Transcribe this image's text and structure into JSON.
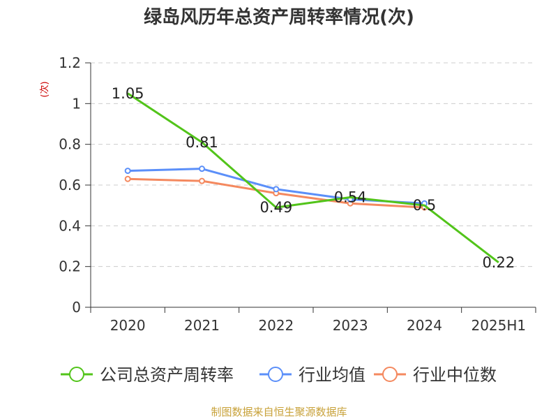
{
  "chart_data": {
    "type": "line",
    "title": "绿岛风历年总资产周转率情况(次)",
    "ylabel": "(次)",
    "xlabel": "",
    "categories": [
      "2020",
      "2021",
      "2022",
      "2023",
      "2024",
      "2025H1"
    ],
    "ylim": [
      0,
      1.2
    ],
    "yticks": [
      "0",
      "0.2",
      "0.4",
      "0.6",
      "0.8",
      "1",
      "1.2"
    ],
    "grid": true,
    "legend_position": "bottom",
    "series": [
      {
        "name": "公司总资产周转率",
        "values": [
          1.05,
          0.81,
          0.49,
          0.54,
          0.5,
          0.22
        ],
        "labels": [
          "1.05",
          "0.81",
          "0.49",
          "0.54",
          "0.5",
          "0.22"
        ],
        "color": "#52c41a"
      },
      {
        "name": "行业均值",
        "values": [
          0.67,
          0.68,
          0.58,
          0.53,
          0.51,
          null
        ],
        "color": "#5b8ff9"
      },
      {
        "name": "行业中位数",
        "values": [
          0.63,
          0.62,
          0.56,
          0.51,
          0.49,
          null
        ],
        "color": "#f4895f"
      }
    ],
    "source": "制图数据来自恒生聚源数据库"
  }
}
